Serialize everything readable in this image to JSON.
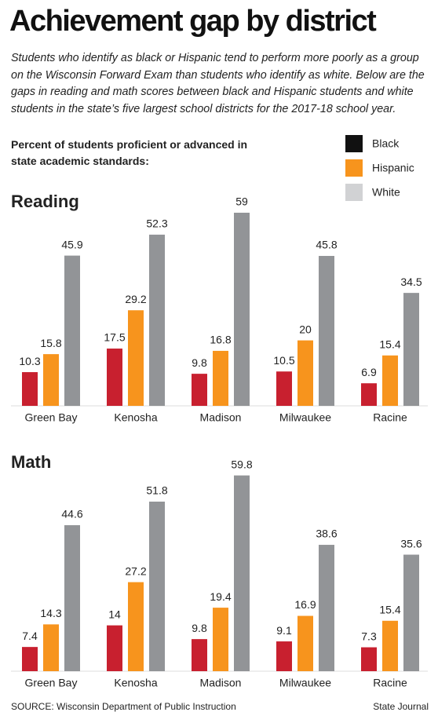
{
  "title": "Achievement gap by district",
  "subtitle": "Students who identify as black or Hispanic tend to perform more poorly as a group on the Wisconsin Forward Exam than students who identify as white. Below are the gaps in reading and math scores between black and Hispanic students and white students in the state’s five largest school districts for the 2017-18 school year.",
  "legend_title": "Percent of students proficient or advanced in state academic standards:",
  "source": "SOURCE: Wisconsin Department of Public Instruction",
  "credit": "State Journal",
  "chart_data": [
    {
      "type": "bar",
      "title": "Reading",
      "categories": [
        "Green Bay",
        "Kenosha",
        "Madison",
        "Milwaukee",
        "Racine"
      ],
      "series": [
        {
          "name": "Black",
          "color": "#c8202f",
          "legend_color": "#111111",
          "values": [
            10.3,
            17.5,
            9.8,
            10.5,
            6.9
          ]
        },
        {
          "name": "Hispanic",
          "color": "#f7941d",
          "legend_color": "#f7941d",
          "values": [
            15.8,
            29.2,
            16.8,
            20,
            15.4
          ]
        },
        {
          "name": "White",
          "color": "#929497",
          "legend_color": "#d1d2d4",
          "values": [
            45.9,
            52.3,
            59,
            45.8,
            34.5
          ]
        }
      ]
    },
    {
      "type": "bar",
      "title": "Math",
      "categories": [
        "Green Bay",
        "Kenosha",
        "Madison",
        "Milwaukee",
        "Racine"
      ],
      "series": [
        {
          "color": "#c8202f",
          "values": [
            7.4,
            14,
            9.8,
            9.1,
            7.3
          ]
        },
        {
          "color": "#f7941d",
          "values": [
            14.3,
            27.2,
            19.4,
            16.9,
            15.4
          ]
        },
        {
          "color": "#929497",
          "values": [
            44.6,
            51.8,
            59.8,
            38.6,
            35.6
          ]
        }
      ]
    }
  ]
}
